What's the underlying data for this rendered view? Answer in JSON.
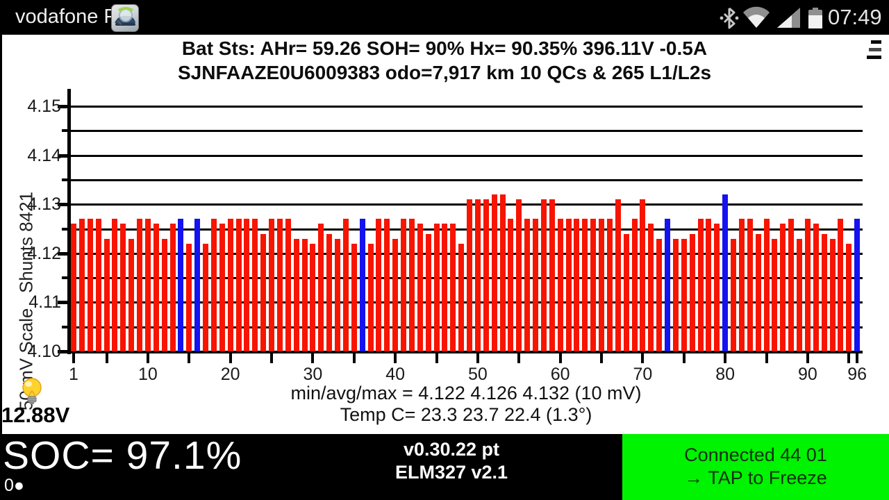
{
  "status_bar": {
    "carrier": "vodafone P",
    "time": "07:49",
    "icons": [
      "leafspy-app-icon",
      "bluetooth-icon",
      "wifi-icon",
      "cell-signal-icon",
      "battery-icon"
    ]
  },
  "header": {
    "line1": "Bat Sts:  AHr= 59.26  SOH= 90%   Hx= 90.35%   396.11V -0.5A",
    "line2": "SJNFAAZE0U6009383 odo=7,917 km  10 QCs  &  265 L1/L2s",
    "menu_icon": "menu-icon"
  },
  "chart_data": {
    "type": "bar",
    "title": "",
    "xlabel": "",
    "ylabel": "50 mV Scale   Shunts 8421",
    "ylim": [
      4.1,
      4.15
    ],
    "y_tick_labels": [
      "4.10",
      "4.11",
      "4.12",
      "4.13",
      "4.14",
      "4.15"
    ],
    "grid_step": 0.005,
    "x_tick_mark_step": 5,
    "x_tick_labels": [
      1,
      10,
      20,
      30,
      40,
      50,
      60,
      70,
      80,
      90,
      96
    ],
    "cell_count": 96,
    "values": [
      4.126,
      4.127,
      4.127,
      4.127,
      4.123,
      4.127,
      4.126,
      4.123,
      4.127,
      4.127,
      4.126,
      4.123,
      4.126,
      4.127,
      4.122,
      4.127,
      4.122,
      4.127,
      4.126,
      4.127,
      4.127,
      4.127,
      4.127,
      4.124,
      4.127,
      4.127,
      4.127,
      4.123,
      4.123,
      4.122,
      4.126,
      4.124,
      4.123,
      4.127,
      4.122,
      4.127,
      4.122,
      4.127,
      4.127,
      4.123,
      4.127,
      4.127,
      4.126,
      4.124,
      4.126,
      4.126,
      4.126,
      4.122,
      4.131,
      4.131,
      4.131,
      4.132,
      4.132,
      4.127,
      4.131,
      4.127,
      4.127,
      4.131,
      4.131,
      4.127,
      4.127,
      4.127,
      4.127,
      4.127,
      4.127,
      4.127,
      4.131,
      4.124,
      4.127,
      4.131,
      4.126,
      4.123,
      4.127,
      4.123,
      4.123,
      4.124,
      4.127,
      4.127,
      4.126,
      4.132,
      4.123,
      4.127,
      4.127,
      4.124,
      4.127,
      4.123,
      4.126,
      4.127,
      4.123,
      4.127,
      4.126,
      4.124,
      4.123,
      4.127,
      4.122,
      4.127
    ],
    "shunt_cells": [
      14,
      16,
      36,
      73,
      80,
      96
    ],
    "bar_color": "#f71400",
    "shunt_color": "#1512f0",
    "legend_position": "none",
    "grid": "on",
    "stats_line1": "min/avg/max = 4.122 4.126 4.132  (10 mV)",
    "stats_line2": "Temp C= 23.3  23.7  22.4  (1.3°)"
  },
  "footer": {
    "aux_voltage": "12.88V",
    "soc": "SOC= 97.1%",
    "counter": "0●",
    "app_version": "v0.30.22 pt",
    "adapter_version": "ELM327 v2.1",
    "connect_line1": "Connected 44 01",
    "connect_line2": "→ TAP to Freeze",
    "connect_bg": "#00f300"
  }
}
